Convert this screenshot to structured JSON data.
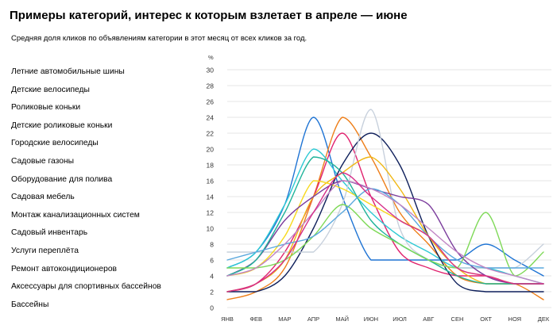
{
  "header": {
    "title": "Примеры категорий, интерес к которым взлетает в апреле — июне",
    "subtitle": "Средняя доля кликов по объявлениям категории в этот месяц от всех кликов за год."
  },
  "chart_data": {
    "type": "line",
    "title": "Примеры категорий, интерес к которым взлетает в апреле — июне",
    "ylabel": "%",
    "xlabel": "",
    "ylim": [
      0,
      30
    ],
    "yticks": [
      "0",
      "2",
      "4",
      "6",
      "8",
      "10",
      "12",
      "14",
      "16",
      "18",
      "20",
      "22",
      "24",
      "26",
      "28",
      "30"
    ],
    "categories": [
      "ЯНВ",
      "ФЕВ",
      "МАР",
      "АПР",
      "МАЙ",
      "ИЮН",
      "ИЮЛ",
      "АВГ",
      "СЕН",
      "ОКТ",
      "НОЯ",
      "ДЕК"
    ],
    "grid": true,
    "series": [
      {
        "name": "Летние автомобильные шины",
        "color": "#1f74d4",
        "values": [
          5,
          7,
          13,
          24,
          14,
          6,
          6,
          6,
          6,
          8,
          6,
          4
        ]
      },
      {
        "name": "Детские велосипеды",
        "color": "#ee7f1a",
        "values": [
          1,
          2,
          5,
          14,
          24,
          19,
          12,
          8,
          4,
          3,
          3,
          1
        ]
      },
      {
        "name": "Роликовые коньки",
        "color": "#e0226e",
        "values": [
          2,
          3,
          7,
          14,
          22,
          14,
          7,
          5,
          4,
          4,
          3,
          3
        ]
      },
      {
        "name": "Детские роликовые коньки",
        "color": "#2ec9d4",
        "values": [
          5,
          7,
          13,
          20,
          16,
          12,
          9,
          7,
          5,
          5,
          4,
          3
        ]
      },
      {
        "name": "Городские велосипеды",
        "color": "#0e1f5b",
        "values": [
          2,
          2,
          4,
          10,
          18,
          22,
          18,
          9,
          3,
          2,
          2,
          2
        ]
      },
      {
        "name": "Садовые газоны",
        "color": "#c7d0dc",
        "values": [
          7,
          7,
          7,
          7,
          13,
          25,
          10,
          6,
          5,
          5,
          5,
          8
        ]
      },
      {
        "name": "Оборудование для полива",
        "color": "#f0b712",
        "values": [
          2,
          3,
          6,
          14,
          17,
          19,
          15,
          9,
          5,
          3,
          3,
          3
        ]
      },
      {
        "name": "Садовая мебель",
        "color": "#f7d91e",
        "values": [
          4,
          5,
          9,
          16,
          15,
          13,
          11,
          9,
          5,
          4,
          3,
          3
        ]
      },
      {
        "name": "Монтаж канализационных систем",
        "color": "#7b3c9c",
        "values": [
          4,
          6,
          11,
          14,
          16,
          15,
          14,
          13,
          7,
          4,
          3,
          3
        ]
      },
      {
        "name": "Садовый инвентарь",
        "color": "#1fb39a",
        "values": [
          4,
          6,
          12,
          19,
          17,
          11,
          8,
          6,
          4,
          3,
          3,
          3
        ]
      },
      {
        "name": "Услуги переплёта",
        "color": "#7ed957",
        "values": [
          5,
          5,
          6,
          9,
          13,
          10,
          8,
          6,
          5,
          12,
          4,
          7
        ]
      },
      {
        "name": "Ремонт автокондиционеров",
        "color": "#5aa8dd",
        "values": [
          6,
          7,
          8,
          9,
          12,
          15,
          13,
          9,
          6,
          5,
          5,
          5
        ]
      },
      {
        "name": "Аксессуары для спортивных бассейнов",
        "color": "#c084c4",
        "values": [
          4,
          5,
          8,
          12,
          16,
          15,
          13,
          10,
          7,
          5,
          4,
          3
        ]
      },
      {
        "name": "Бассейны",
        "color": "#d62f8a",
        "values": [
          2,
          3,
          6,
          12,
          17,
          14,
          11,
          9,
          5,
          4,
          3,
          3
        ]
      }
    ]
  }
}
